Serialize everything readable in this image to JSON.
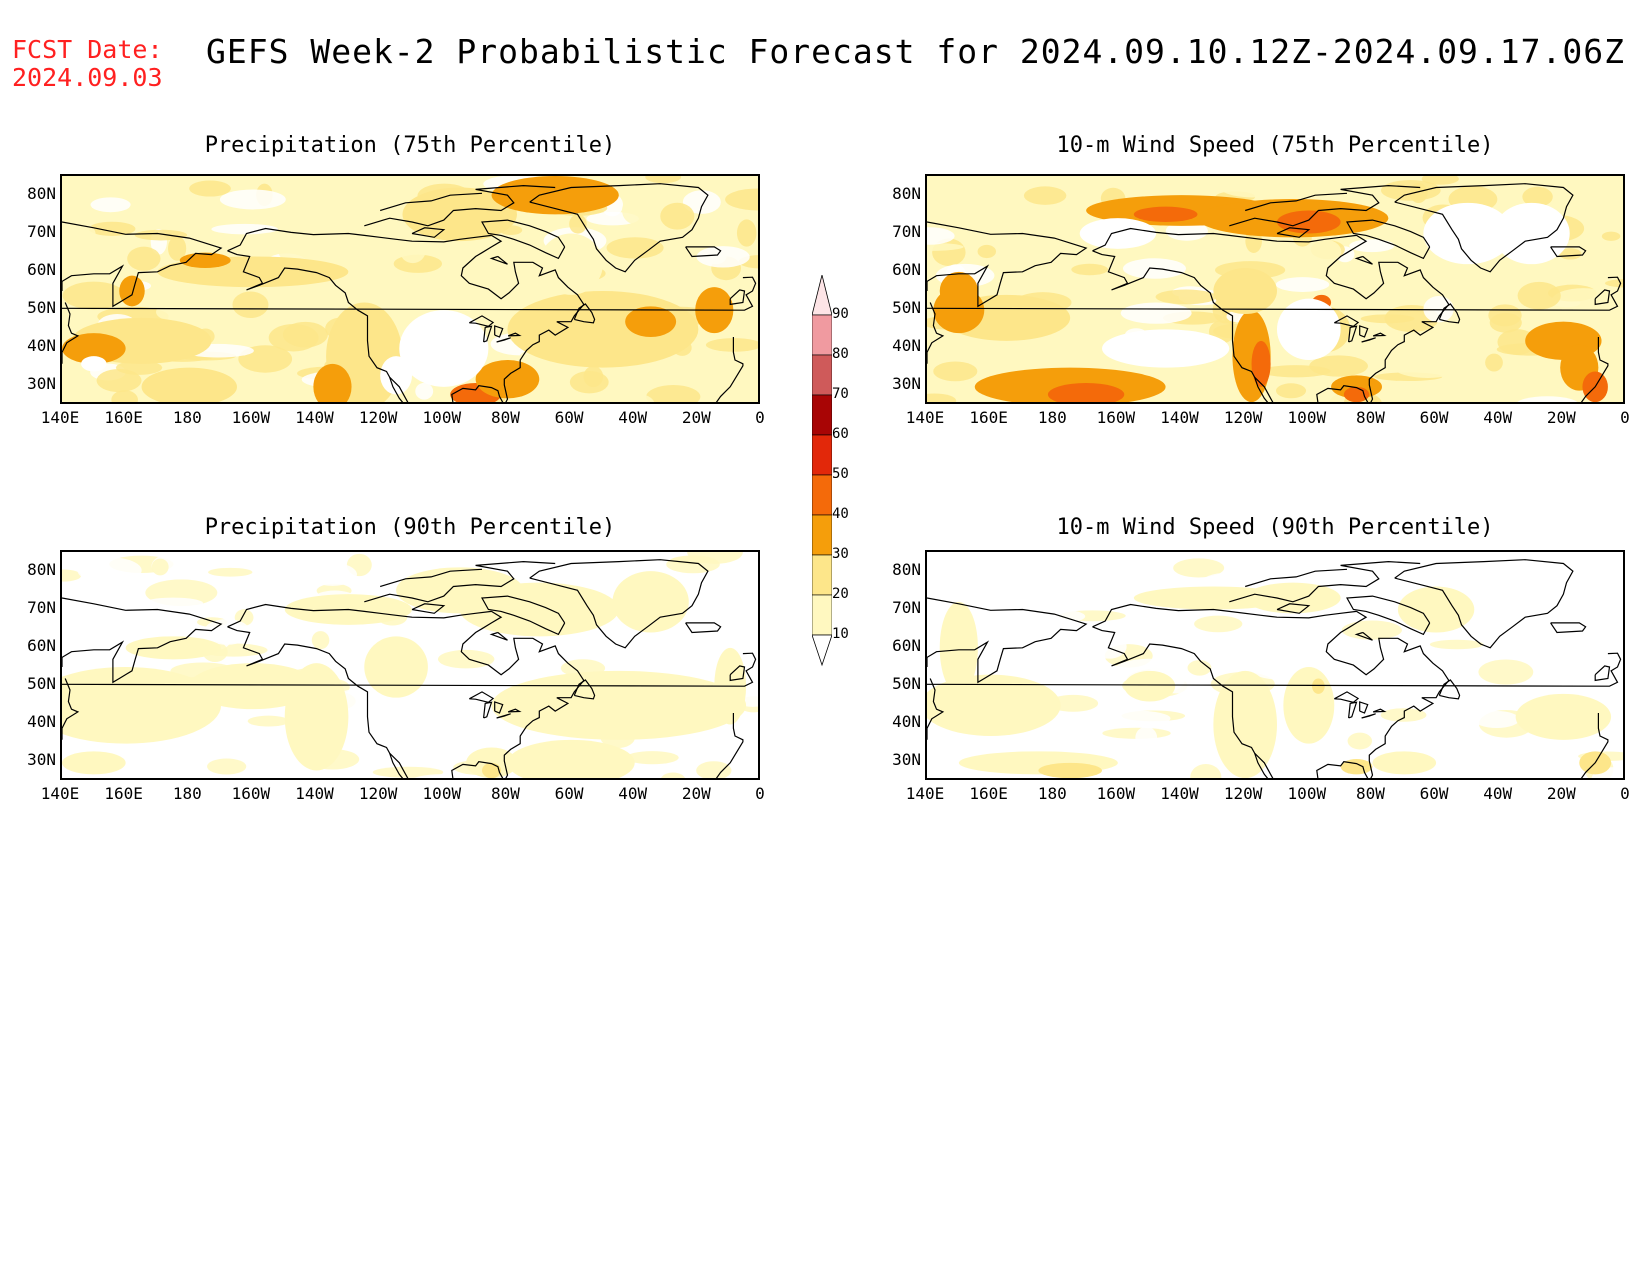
{
  "fcst_date_label": "FCST Date:",
  "fcst_date_value": "2024.09.03",
  "title": "GEFS Week-2 Probabilistic Forecast for 2024.09.10.12Z-2024.09.17.06Z",
  "panels": [
    {
      "id": "precip75",
      "title": "Precipitation (75th Percentile)"
    },
    {
      "id": "wind75",
      "title": "10-m Wind Speed (75th Percentile)"
    },
    {
      "id": "precip90",
      "title": "Precipitation (90th Percentile)"
    },
    {
      "id": "wind90",
      "title": "10-m Wind Speed (90th Percentile)"
    }
  ],
  "lat_labels": [
    "80N",
    "70N",
    "60N",
    "50N",
    "40N",
    "30N"
  ],
  "lon_labels": [
    "140E",
    "160E",
    "180",
    "160W",
    "140W",
    "120W",
    "100W",
    "80W",
    "60W",
    "40W",
    "20W",
    "0"
  ],
  "colorbar": {
    "levels": [
      10,
      20,
      30,
      40,
      50,
      60,
      70,
      80,
      90
    ],
    "colors": [
      "#fff8c0",
      "#fde68a",
      "#f59e0b",
      "#f46a0a",
      "#e2280a",
      "#a80505",
      "#cf5a5a",
      "#f09aa0",
      "#fbd3d6"
    ]
  },
  "colors": {
    "fcst_text": "#ff2020",
    "coast": "#000000",
    "background": "#ffffff"
  }
}
